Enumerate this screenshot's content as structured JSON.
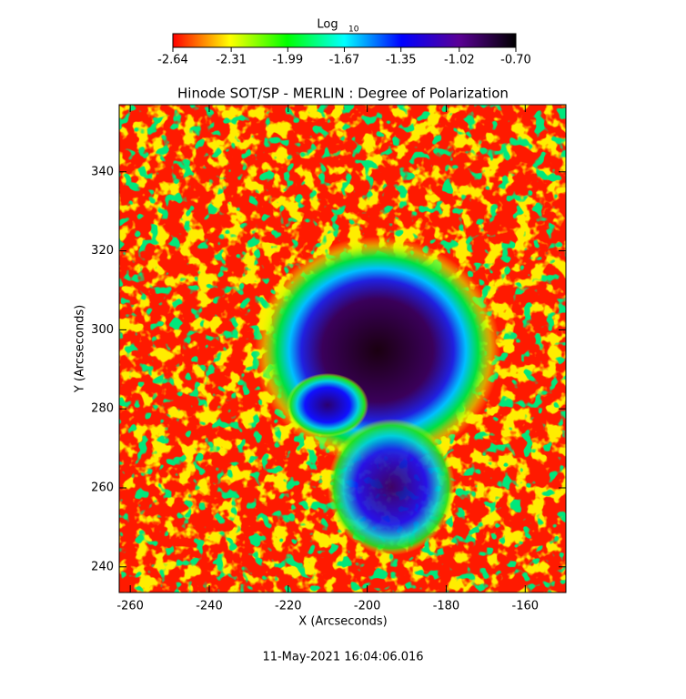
{
  "chart_data": {
    "type": "image",
    "title": "Hinode SOT/SP - MERLIN : Degree of Polarization",
    "x_label": "X (Arcseconds)",
    "y_label": "Y (Arcseconds)",
    "xlim": [
      -262.8,
      -149.7
    ],
    "ylim": [
      233.5,
      357.0
    ],
    "xticks": [
      -260,
      -240,
      -220,
      -200,
      -180,
      -160
    ],
    "yticks": [
      240,
      260,
      280,
      300,
      320,
      340
    ],
    "colorbar_label": "Log",
    "colorbar_label_sub": "10",
    "clim": [
      -2.64,
      -0.7
    ],
    "cticks": [
      -2.64,
      -2.31,
      -1.99,
      -1.67,
      -1.35,
      -1.02,
      {
        "value": -0.7,
        "label": "-0.70"
      }
    ],
    "colormap": [
      "#ff0000",
      "#ffff00",
      "#00ff00",
      "#00ffff",
      "#0000ff",
      "#5a0096",
      "#000000"
    ],
    "date": "11-May-2021 16:04:06.016"
  }
}
